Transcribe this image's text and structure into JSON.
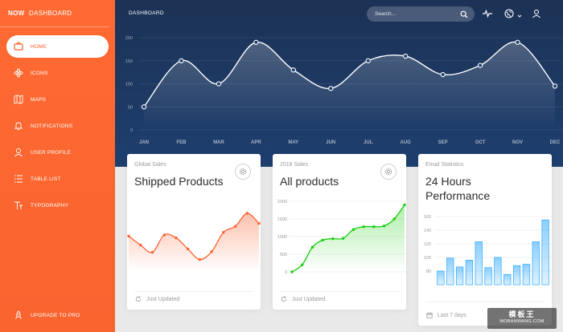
{
  "sidebar": {
    "logo": "NOW",
    "title": "DASHBOARD",
    "items": [
      {
        "label": "HOME",
        "icon": "design-app-icon",
        "active": true
      },
      {
        "label": "ICONS",
        "icon": "atom-icon",
        "active": false
      },
      {
        "label": "MAPS",
        "icon": "map-icon",
        "active": false
      },
      {
        "label": "NOTIFICATIONS",
        "icon": "bell-icon",
        "active": false
      },
      {
        "label": "USER PROFILE",
        "icon": "user-icon",
        "active": false
      },
      {
        "label": "TABLE LIST",
        "icon": "list-icon",
        "active": false
      },
      {
        "label": "TYPOGRAPHY",
        "icon": "text-icon",
        "active": false
      }
    ],
    "upgrade_label": "UPGRADE TO PRO"
  },
  "header": {
    "title": "DASHBOARD",
    "search_placeholder": "Search..."
  },
  "colors": {
    "accent": "#f96332",
    "header_bg": "#1e3f6f",
    "green": "#18ce0f"
  },
  "cards": [
    {
      "category": "Global Sales",
      "title": "Shipped Products",
      "footer": "Just Updated"
    },
    {
      "category": "2018 Sales",
      "title": "All products",
      "footer": "Just Updated"
    },
    {
      "category": "Email Statistics",
      "title": "24 Hours Performance",
      "footer": "Last 7 days"
    }
  ],
  "watermark": {
    "big": "模板王",
    "small": "MOBANWANG.COM"
  },
  "chart_data": [
    {
      "type": "line",
      "title": "",
      "categories": [
        "JAN",
        "FEB",
        "MAR",
        "APR",
        "MAY",
        "JUN",
        "JUL",
        "AUG",
        "SEP",
        "OCT",
        "NOV",
        "DEC"
      ],
      "values": [
        50,
        150,
        100,
        190,
        130,
        90,
        150,
        160,
        120,
        140,
        190,
        95
      ],
      "yticks": [
        0,
        50,
        100,
        150,
        200
      ],
      "ylim": [
        0,
        200
      ]
    },
    {
      "type": "line",
      "title": "Shipped Products",
      "values": [
        542,
        480,
        430,
        550,
        530,
        453,
        380,
        434,
        568,
        610,
        700,
        630
      ],
      "ylim": [
        300,
        800
      ]
    },
    {
      "type": "line",
      "title": "All products",
      "values": [
        0,
        200,
        700,
        900,
        940,
        950,
        1200,
        1280,
        1280,
        1300,
        1500,
        1900
      ],
      "yticks": [
        0,
        500,
        1000,
        1500,
        2000
      ],
      "ylim": [
        0,
        2000
      ]
    },
    {
      "type": "bar",
      "title": "24 Hours Performance",
      "values": [
        80,
        99,
        86,
        96,
        123,
        85,
        100,
        75,
        88,
        90,
        123,
        155
      ],
      "yticks": [
        80,
        100,
        120,
        140,
        160
      ],
      "ylim": [
        60,
        160
      ]
    }
  ]
}
